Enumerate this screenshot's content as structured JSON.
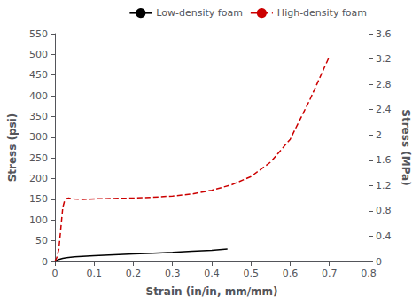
{
  "chart_data": {
    "type": "line",
    "xlabel": "Strain (in/in, mm/mm)",
    "ylabel": "Stress (psi)",
    "y2label": "Stress (MPa)",
    "xlim": [
      0,
      0.8
    ],
    "xticks": [
      0,
      0.1,
      0.2,
      0.3,
      0.4,
      0.5,
      0.6,
      0.7,
      0.8
    ],
    "ylim": [
      0,
      550
    ],
    "yticks": [
      0,
      50,
      100,
      150,
      200,
      250,
      300,
      350,
      400,
      450,
      500,
      550
    ],
    "y2lim": [
      0,
      3.6
    ],
    "y2ticks": [
      0,
      0.4,
      0.8,
      1.2,
      1.6,
      2.0,
      2.4,
      2.8,
      3.2,
      3.6
    ],
    "grid": false,
    "legend": "upper right",
    "series": [
      {
        "name": "Low-density foam",
        "color": "#000000",
        "line_style": "solid",
        "x": [
          0.0,
          0.005,
          0.01,
          0.02,
          0.03,
          0.05,
          0.08,
          0.1,
          0.15,
          0.2,
          0.25,
          0.3,
          0.35,
          0.4,
          0.44
        ],
        "values": [
          0.0,
          3.0,
          5.0,
          7.5,
          9.0,
          11.0,
          13.0,
          14.0,
          16.0,
          18.0,
          20.0,
          22.0,
          24.5,
          27.0,
          30.0
        ]
      },
      {
        "name": "High-density foam",
        "color": "#cc0000",
        "line_style": "dashed",
        "x": [
          0.0,
          0.005,
          0.01,
          0.015,
          0.02,
          0.025,
          0.03,
          0.035,
          0.04,
          0.05,
          0.07,
          0.1,
          0.15,
          0.2,
          0.25,
          0.3,
          0.35,
          0.4,
          0.45,
          0.5,
          0.55,
          0.6,
          0.65,
          0.7
        ],
        "values": [
          0.0,
          10.0,
          30.0,
          80.0,
          130.0,
          148.0,
          152.0,
          153.0,
          152.0,
          151.0,
          150.0,
          151.0,
          152.0,
          153.0,
          155.0,
          158.0,
          163.0,
          172.0,
          185.0,
          205.0,
          240.0,
          295.0,
          390.0,
          495.0
        ]
      }
    ]
  }
}
